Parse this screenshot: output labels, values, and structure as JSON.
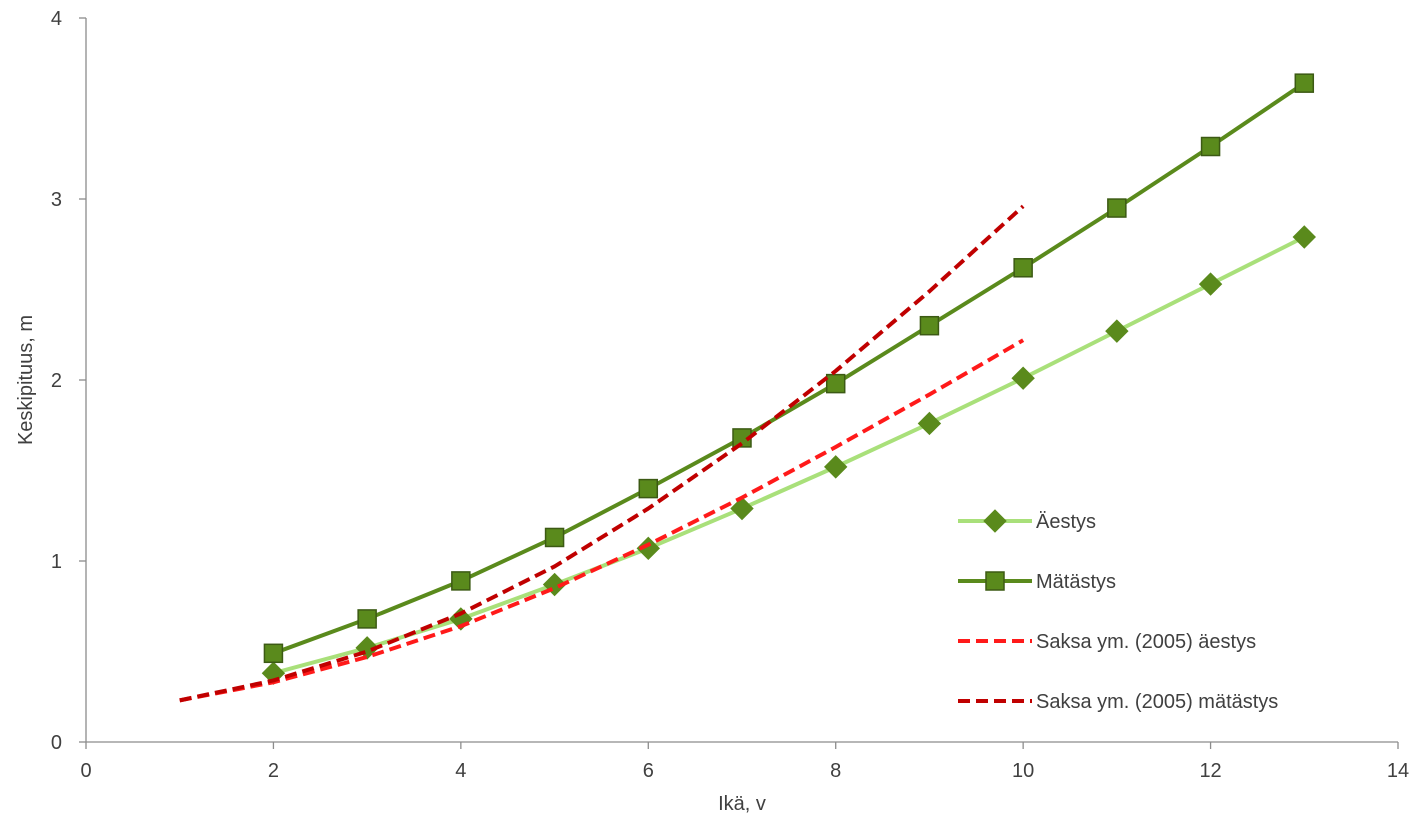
{
  "chart_data": {
    "type": "line",
    "title": "",
    "xlabel": "Ikä, v",
    "ylabel": "Keskipituus, m",
    "xlim": [
      0,
      14
    ],
    "ylim": [
      0,
      4
    ],
    "x_ticks": [
      0,
      2,
      4,
      6,
      8,
      10,
      12,
      14
    ],
    "y_ticks": [
      0,
      1,
      2,
      3,
      4
    ],
    "grid": false,
    "legend_position": "lower-right",
    "series": [
      {
        "name": "Äestys",
        "marker": "diamond",
        "line_style": "solid",
        "color": "#a9e07a",
        "marker_color": "#5a8a1c",
        "x": [
          2,
          3,
          4,
          5,
          6,
          7,
          8,
          9,
          10,
          11,
          12,
          13
        ],
        "y": [
          0.38,
          0.52,
          0.68,
          0.87,
          1.07,
          1.29,
          1.52,
          1.76,
          2.01,
          2.27,
          2.53,
          2.79
        ]
      },
      {
        "name": "Mätästys",
        "marker": "square",
        "line_style": "solid",
        "color": "#5a8a1c",
        "marker_color": "#5a8a1c",
        "x": [
          2,
          3,
          4,
          5,
          6,
          7,
          8,
          9,
          10,
          11,
          12,
          13
        ],
        "y": [
          0.49,
          0.68,
          0.89,
          1.13,
          1.4,
          1.68,
          1.98,
          2.3,
          2.62,
          2.95,
          3.29,
          3.64
        ]
      },
      {
        "name": "Saksa ym. (2005) äestys",
        "marker": "none",
        "line_style": "dashed",
        "color": "#ff1a1a",
        "x": [
          1,
          2,
          3,
          4,
          5,
          6,
          7,
          8,
          9,
          10
        ],
        "y": [
          0.23,
          0.33,
          0.47,
          0.64,
          0.85,
          1.09,
          1.35,
          1.63,
          1.92,
          2.22
        ]
      },
      {
        "name": "Saksa ym. (2005) mätästys",
        "marker": "none",
        "line_style": "dashed",
        "color": "#c00000",
        "x": [
          1,
          2,
          3,
          4,
          5,
          6,
          7,
          8,
          9,
          10
        ],
        "y": [
          0.23,
          0.34,
          0.5,
          0.71,
          0.97,
          1.29,
          1.65,
          2.05,
          2.49,
          2.96
        ]
      }
    ]
  }
}
